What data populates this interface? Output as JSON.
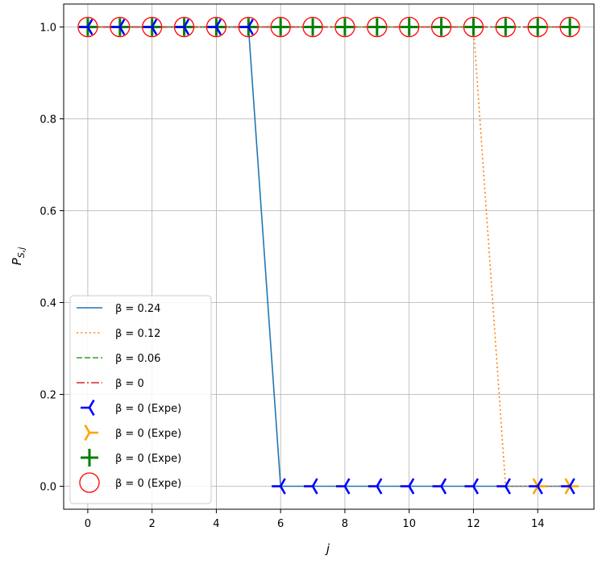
{
  "chart_data": {
    "type": "line",
    "xlabel": "j",
    "ylabel": "P_{S,j}",
    "xlim": [
      -0.75,
      15.75
    ],
    "ylim": [
      -0.05,
      1.05
    ],
    "xticks": [
      0,
      2,
      4,
      6,
      8,
      10,
      12,
      14
    ],
    "yticks": [
      0.0,
      0.2,
      0.4,
      0.6,
      0.8,
      1.0
    ],
    "xtick_labels": [
      "0",
      "2",
      "4",
      "6",
      "8",
      "10",
      "12",
      "14"
    ],
    "ytick_labels": [
      "0.0",
      "0.2",
      "0.4",
      "0.6",
      "0.8",
      "1.0"
    ],
    "grid": true,
    "legend_position": "lower-left",
    "x": [
      0,
      1,
      2,
      3,
      4,
      5,
      6,
      7,
      8,
      9,
      10,
      11,
      12,
      13,
      14,
      15
    ],
    "series": [
      {
        "name": "β = 0.24",
        "kind": "line",
        "style": "solid",
        "color": "#1f77b4",
        "values": [
          1,
          1,
          1,
          1,
          1,
          1,
          0,
          0,
          0,
          0,
          0,
          0,
          0,
          0,
          0,
          0
        ]
      },
      {
        "name": "β = 0.12",
        "kind": "line",
        "style": "dotted",
        "color": "#ff7f0e",
        "values": [
          1,
          1,
          1,
          1,
          1,
          1,
          1,
          1,
          1,
          1,
          1,
          1,
          1,
          0,
          0,
          0
        ]
      },
      {
        "name": "β = 0.06",
        "kind": "line",
        "style": "dashed",
        "color": "#2ca02c",
        "values": [
          1,
          1,
          1,
          1,
          1,
          1,
          1,
          1,
          1,
          1,
          1,
          1,
          1,
          1,
          1,
          1
        ]
      },
      {
        "name": "β = 0",
        "kind": "line",
        "style": "dashdot",
        "color": "#d62728",
        "values": [
          1,
          1,
          1,
          1,
          1,
          1,
          1,
          1,
          1,
          1,
          1,
          1,
          1,
          1,
          1,
          1
        ]
      },
      {
        "name": "β = 0 (Expe)",
        "kind": "marker",
        "marker": "tri_left",
        "color": "#0000ff",
        "values": [
          1,
          1,
          1,
          1,
          1,
          1,
          0,
          0,
          0,
          0,
          0,
          0,
          0,
          0,
          0,
          0
        ]
      },
      {
        "name": "β = 0 (Expe)",
        "kind": "marker",
        "marker": "tri_right",
        "color": "#ffa500",
        "values": [
          null,
          null,
          null,
          null,
          null,
          null,
          null,
          null,
          null,
          null,
          null,
          null,
          null,
          null,
          0,
          0
        ]
      },
      {
        "name": "β = 0 (Expe)",
        "kind": "marker",
        "marker": "plus",
        "color": "#008000",
        "values": [
          1,
          1,
          1,
          1,
          1,
          1,
          1,
          1,
          1,
          1,
          1,
          1,
          1,
          1,
          1,
          1
        ]
      },
      {
        "name": "β = 0 (Expe)",
        "kind": "marker",
        "marker": "circle",
        "color": "#ff0000",
        "values": [
          1,
          1,
          1,
          1,
          1,
          1,
          1,
          1,
          1,
          1,
          1,
          1,
          1,
          1,
          1,
          1
        ]
      }
    ]
  }
}
